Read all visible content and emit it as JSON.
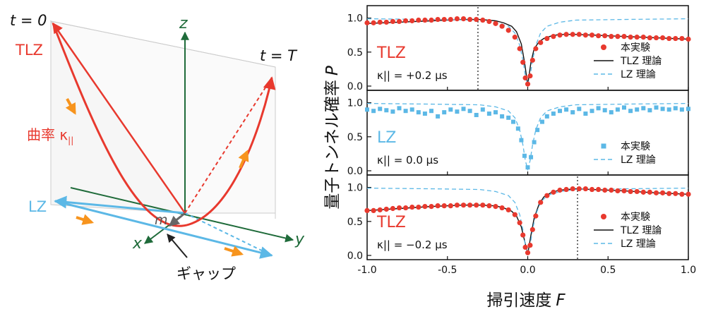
{
  "diagram": {
    "t0_label": "t = 0",
    "tT_label": "t = T",
    "tlz_label": "TLZ",
    "curvature_label": "曲率 κ",
    "curvature_sub": "||",
    "lz_label": "LZ",
    "axis_z": "z",
    "axis_x": "x",
    "axis_y": "y",
    "m_label": "m",
    "gap_label": "ギャップ",
    "colors": {
      "tlz": "#e8392e",
      "lz": "#5cb8e6",
      "axis": "#1f6b3a",
      "arrow": "#f7941d"
    }
  },
  "chart_data": [
    {
      "type": "scatter",
      "panel_label": "TLZ",
      "panel_label_color": "#e8392e",
      "kappa_text": "κ|| = +0.2 μs",
      "kappa_value": 0.2,
      "xlim": [
        -1.0,
        1.0
      ],
      "ylim": [
        0.0,
        1.1
      ],
      "yticks": [
        "0.0",
        "0.5",
        "1.0"
      ],
      "dotted_vline": -0.31,
      "legend": [
        "本実験",
        "TLZ 理論",
        "LZ 理論"
      ],
      "series": [
        {
          "name": "本実験",
          "style": "dot",
          "color": "#e8392e",
          "x": [
            -1.0,
            -0.96,
            -0.92,
            -0.88,
            -0.84,
            -0.8,
            -0.76,
            -0.72,
            -0.68,
            -0.64,
            -0.6,
            -0.56,
            -0.52,
            -0.48,
            -0.44,
            -0.4,
            -0.36,
            -0.32,
            -0.28,
            -0.24,
            -0.2,
            -0.16,
            -0.12,
            -0.08,
            -0.05,
            -0.03,
            -0.015,
            0.0,
            0.015,
            0.03,
            0.05,
            0.08,
            0.12,
            0.16,
            0.2,
            0.24,
            0.28,
            0.32,
            0.36,
            0.4,
            0.44,
            0.48,
            0.52,
            0.56,
            0.6,
            0.64,
            0.68,
            0.72,
            0.76,
            0.8,
            0.84,
            0.88,
            0.92,
            0.96,
            1.0
          ],
          "y": [
            0.93,
            0.93,
            0.94,
            0.94,
            0.95,
            0.95,
            0.96,
            0.96,
            0.97,
            0.97,
            0.97,
            0.98,
            0.98,
            0.98,
            0.99,
            0.99,
            0.98,
            0.98,
            0.97,
            0.95,
            0.92,
            0.88,
            0.82,
            0.72,
            0.55,
            0.35,
            0.12,
            0.03,
            0.15,
            0.38,
            0.55,
            0.64,
            0.7,
            0.73,
            0.75,
            0.76,
            0.76,
            0.76,
            0.75,
            0.75,
            0.74,
            0.74,
            0.73,
            0.73,
            0.73,
            0.72,
            0.72,
            0.72,
            0.71,
            0.71,
            0.71,
            0.7,
            0.7,
            0.7,
            0.69
          ]
        },
        {
          "name": "TLZ 理論",
          "style": "line",
          "color": "#111111",
          "x": [
            -1.0,
            -0.8,
            -0.6,
            -0.4,
            -0.3,
            -0.2,
            -0.15,
            -0.1,
            -0.07,
            -0.04,
            -0.02,
            0.0,
            0.02,
            0.04,
            0.07,
            0.1,
            0.15,
            0.2,
            0.3,
            0.4,
            0.6,
            0.8,
            1.0
          ],
          "y": [
            0.92,
            0.94,
            0.96,
            0.98,
            0.98,
            0.96,
            0.93,
            0.88,
            0.8,
            0.62,
            0.35,
            0.02,
            0.35,
            0.55,
            0.65,
            0.7,
            0.74,
            0.76,
            0.76,
            0.75,
            0.73,
            0.71,
            0.69
          ]
        },
        {
          "name": "LZ 理論",
          "style": "dashed",
          "color": "#5cb8e6",
          "x": [
            -1.0,
            -0.6,
            -0.3,
            -0.2,
            -0.12,
            -0.08,
            -0.05,
            -0.03,
            -0.015,
            0.0,
            0.015,
            0.03,
            0.05,
            0.08,
            0.12,
            0.2,
            0.3,
            0.6,
            1.0
          ],
          "y": [
            0.99,
            0.98,
            0.97,
            0.94,
            0.88,
            0.78,
            0.6,
            0.38,
            0.15,
            0.02,
            0.15,
            0.38,
            0.6,
            0.78,
            0.88,
            0.94,
            0.97,
            0.98,
            0.99
          ]
        }
      ]
    },
    {
      "type": "scatter",
      "panel_label": "LZ",
      "panel_label_color": "#5cb8e6",
      "kappa_text": "κ|| = 0.0 μs",
      "kappa_value": 0.0,
      "xlim": [
        -1.0,
        1.0
      ],
      "ylim": [
        0.0,
        1.1
      ],
      "yticks": [
        "0.0",
        "0.5",
        "1.0"
      ],
      "legend": [
        "本実験",
        "LZ 理論"
      ],
      "series": [
        {
          "name": "本実験",
          "style": "square",
          "color": "#5cb8e6",
          "x": [
            -1.0,
            -0.96,
            -0.92,
            -0.88,
            -0.84,
            -0.8,
            -0.76,
            -0.72,
            -0.68,
            -0.64,
            -0.6,
            -0.56,
            -0.52,
            -0.48,
            -0.44,
            -0.4,
            -0.36,
            -0.32,
            -0.28,
            -0.24,
            -0.2,
            -0.16,
            -0.12,
            -0.09,
            -0.06,
            -0.04,
            -0.02,
            0.0,
            0.02,
            0.04,
            0.06,
            0.09,
            0.12,
            0.16,
            0.2,
            0.24,
            0.28,
            0.32,
            0.36,
            0.4,
            0.44,
            0.48,
            0.52,
            0.56,
            0.6,
            0.64,
            0.68,
            0.72,
            0.76,
            0.8,
            0.84,
            0.88,
            0.92,
            0.96,
            1.0
          ],
          "y": [
            0.9,
            0.88,
            0.91,
            0.89,
            0.87,
            0.92,
            0.88,
            0.9,
            0.86,
            0.84,
            0.88,
            0.8,
            0.86,
            0.9,
            0.87,
            0.91,
            0.88,
            0.82,
            0.9,
            0.84,
            0.86,
            0.8,
            0.78,
            0.72,
            0.62,
            0.45,
            0.22,
            0.05,
            0.2,
            0.42,
            0.6,
            0.72,
            0.8,
            0.84,
            0.88,
            0.9,
            0.86,
            0.91,
            0.84,
            0.88,
            0.92,
            0.89,
            0.86,
            0.9,
            0.93,
            0.88,
            0.9,
            0.92,
            0.89,
            0.93,
            0.91,
            0.9,
            0.92,
            0.9,
            0.91
          ]
        },
        {
          "name": "LZ 理論",
          "style": "dashed",
          "color": "#5cb8e6",
          "x": [
            -1.0,
            -0.6,
            -0.3,
            -0.2,
            -0.12,
            -0.08,
            -0.05,
            -0.03,
            -0.015,
            0.0,
            0.015,
            0.03,
            0.05,
            0.08,
            0.12,
            0.2,
            0.3,
            0.6,
            1.0
          ],
          "y": [
            0.99,
            0.98,
            0.97,
            0.94,
            0.88,
            0.78,
            0.6,
            0.38,
            0.15,
            0.02,
            0.15,
            0.38,
            0.6,
            0.78,
            0.88,
            0.94,
            0.97,
            0.98,
            0.99
          ]
        }
      ]
    },
    {
      "type": "scatter",
      "panel_label": "TLZ",
      "panel_label_color": "#e8392e",
      "kappa_text": "κ|| = −0.2 μs",
      "kappa_value": -0.2,
      "xlim": [
        -1.0,
        1.0
      ],
      "ylim": [
        0.0,
        1.1
      ],
      "yticks": [
        "0.0",
        "0.5",
        "1.0"
      ],
      "xticks": [
        "-1.0",
        "-0.5",
        "0.0",
        "0.5",
        "1.0"
      ],
      "dotted_vline": 0.31,
      "legend": [
        "本実験",
        "TLZ 理論",
        "LZ 理論"
      ],
      "series": [
        {
          "name": "本実験",
          "style": "dot",
          "color": "#e8392e",
          "x": [
            -1.0,
            -0.96,
            -0.92,
            -0.88,
            -0.84,
            -0.8,
            -0.76,
            -0.72,
            -0.68,
            -0.64,
            -0.6,
            -0.56,
            -0.52,
            -0.48,
            -0.44,
            -0.4,
            -0.36,
            -0.32,
            -0.28,
            -0.24,
            -0.2,
            -0.16,
            -0.12,
            -0.08,
            -0.05,
            -0.03,
            -0.015,
            0.0,
            0.015,
            0.03,
            0.05,
            0.08,
            0.12,
            0.16,
            0.2,
            0.24,
            0.28,
            0.32,
            0.36,
            0.4,
            0.44,
            0.48,
            0.52,
            0.56,
            0.6,
            0.64,
            0.68,
            0.72,
            0.76,
            0.8,
            0.84,
            0.88,
            0.92,
            0.96,
            1.0
          ],
          "y": [
            0.66,
            0.66,
            0.67,
            0.68,
            0.69,
            0.7,
            0.7,
            0.71,
            0.71,
            0.72,
            0.72,
            0.73,
            0.73,
            0.73,
            0.74,
            0.74,
            0.74,
            0.74,
            0.74,
            0.73,
            0.72,
            0.7,
            0.67,
            0.6,
            0.48,
            0.3,
            0.12,
            0.04,
            0.15,
            0.38,
            0.58,
            0.78,
            0.88,
            0.93,
            0.96,
            0.97,
            0.98,
            0.98,
            0.98,
            0.97,
            0.97,
            0.96,
            0.96,
            0.95,
            0.95,
            0.94,
            0.94,
            0.93,
            0.93,
            0.92,
            0.92,
            0.91,
            0.91,
            0.9,
            0.9
          ]
        },
        {
          "name": "TLZ 理論",
          "style": "line",
          "color": "#111111",
          "x": [
            -1.0,
            -0.8,
            -0.6,
            -0.4,
            -0.3,
            -0.2,
            -0.15,
            -0.1,
            -0.07,
            -0.04,
            -0.02,
            0.0,
            0.02,
            0.04,
            0.07,
            0.1,
            0.15,
            0.2,
            0.3,
            0.4,
            0.6,
            0.8,
            1.0
          ],
          "y": [
            0.66,
            0.69,
            0.72,
            0.74,
            0.74,
            0.73,
            0.7,
            0.65,
            0.58,
            0.42,
            0.22,
            0.02,
            0.3,
            0.55,
            0.75,
            0.86,
            0.93,
            0.96,
            0.98,
            0.97,
            0.95,
            0.92,
            0.9
          ]
        },
        {
          "name": "LZ 理論",
          "style": "dashed",
          "color": "#5cb8e6",
          "x": [
            -1.0,
            -0.6,
            -0.3,
            -0.2,
            -0.12,
            -0.08,
            -0.05,
            -0.03,
            -0.015,
            0.0,
            0.015,
            0.03,
            0.05,
            0.08,
            0.12,
            0.2,
            0.3,
            0.6,
            1.0
          ],
          "y": [
            0.99,
            0.98,
            0.97,
            0.94,
            0.88,
            0.78,
            0.6,
            0.38,
            0.15,
            0.02,
            0.15,
            0.38,
            0.6,
            0.78,
            0.88,
            0.94,
            0.97,
            0.98,
            0.99
          ]
        }
      ]
    }
  ],
  "axes": {
    "ylabel": "量子トンネル確率",
    "ylabel_italic": "P",
    "xlabel": "掃引速度",
    "xlabel_italic": "F"
  }
}
